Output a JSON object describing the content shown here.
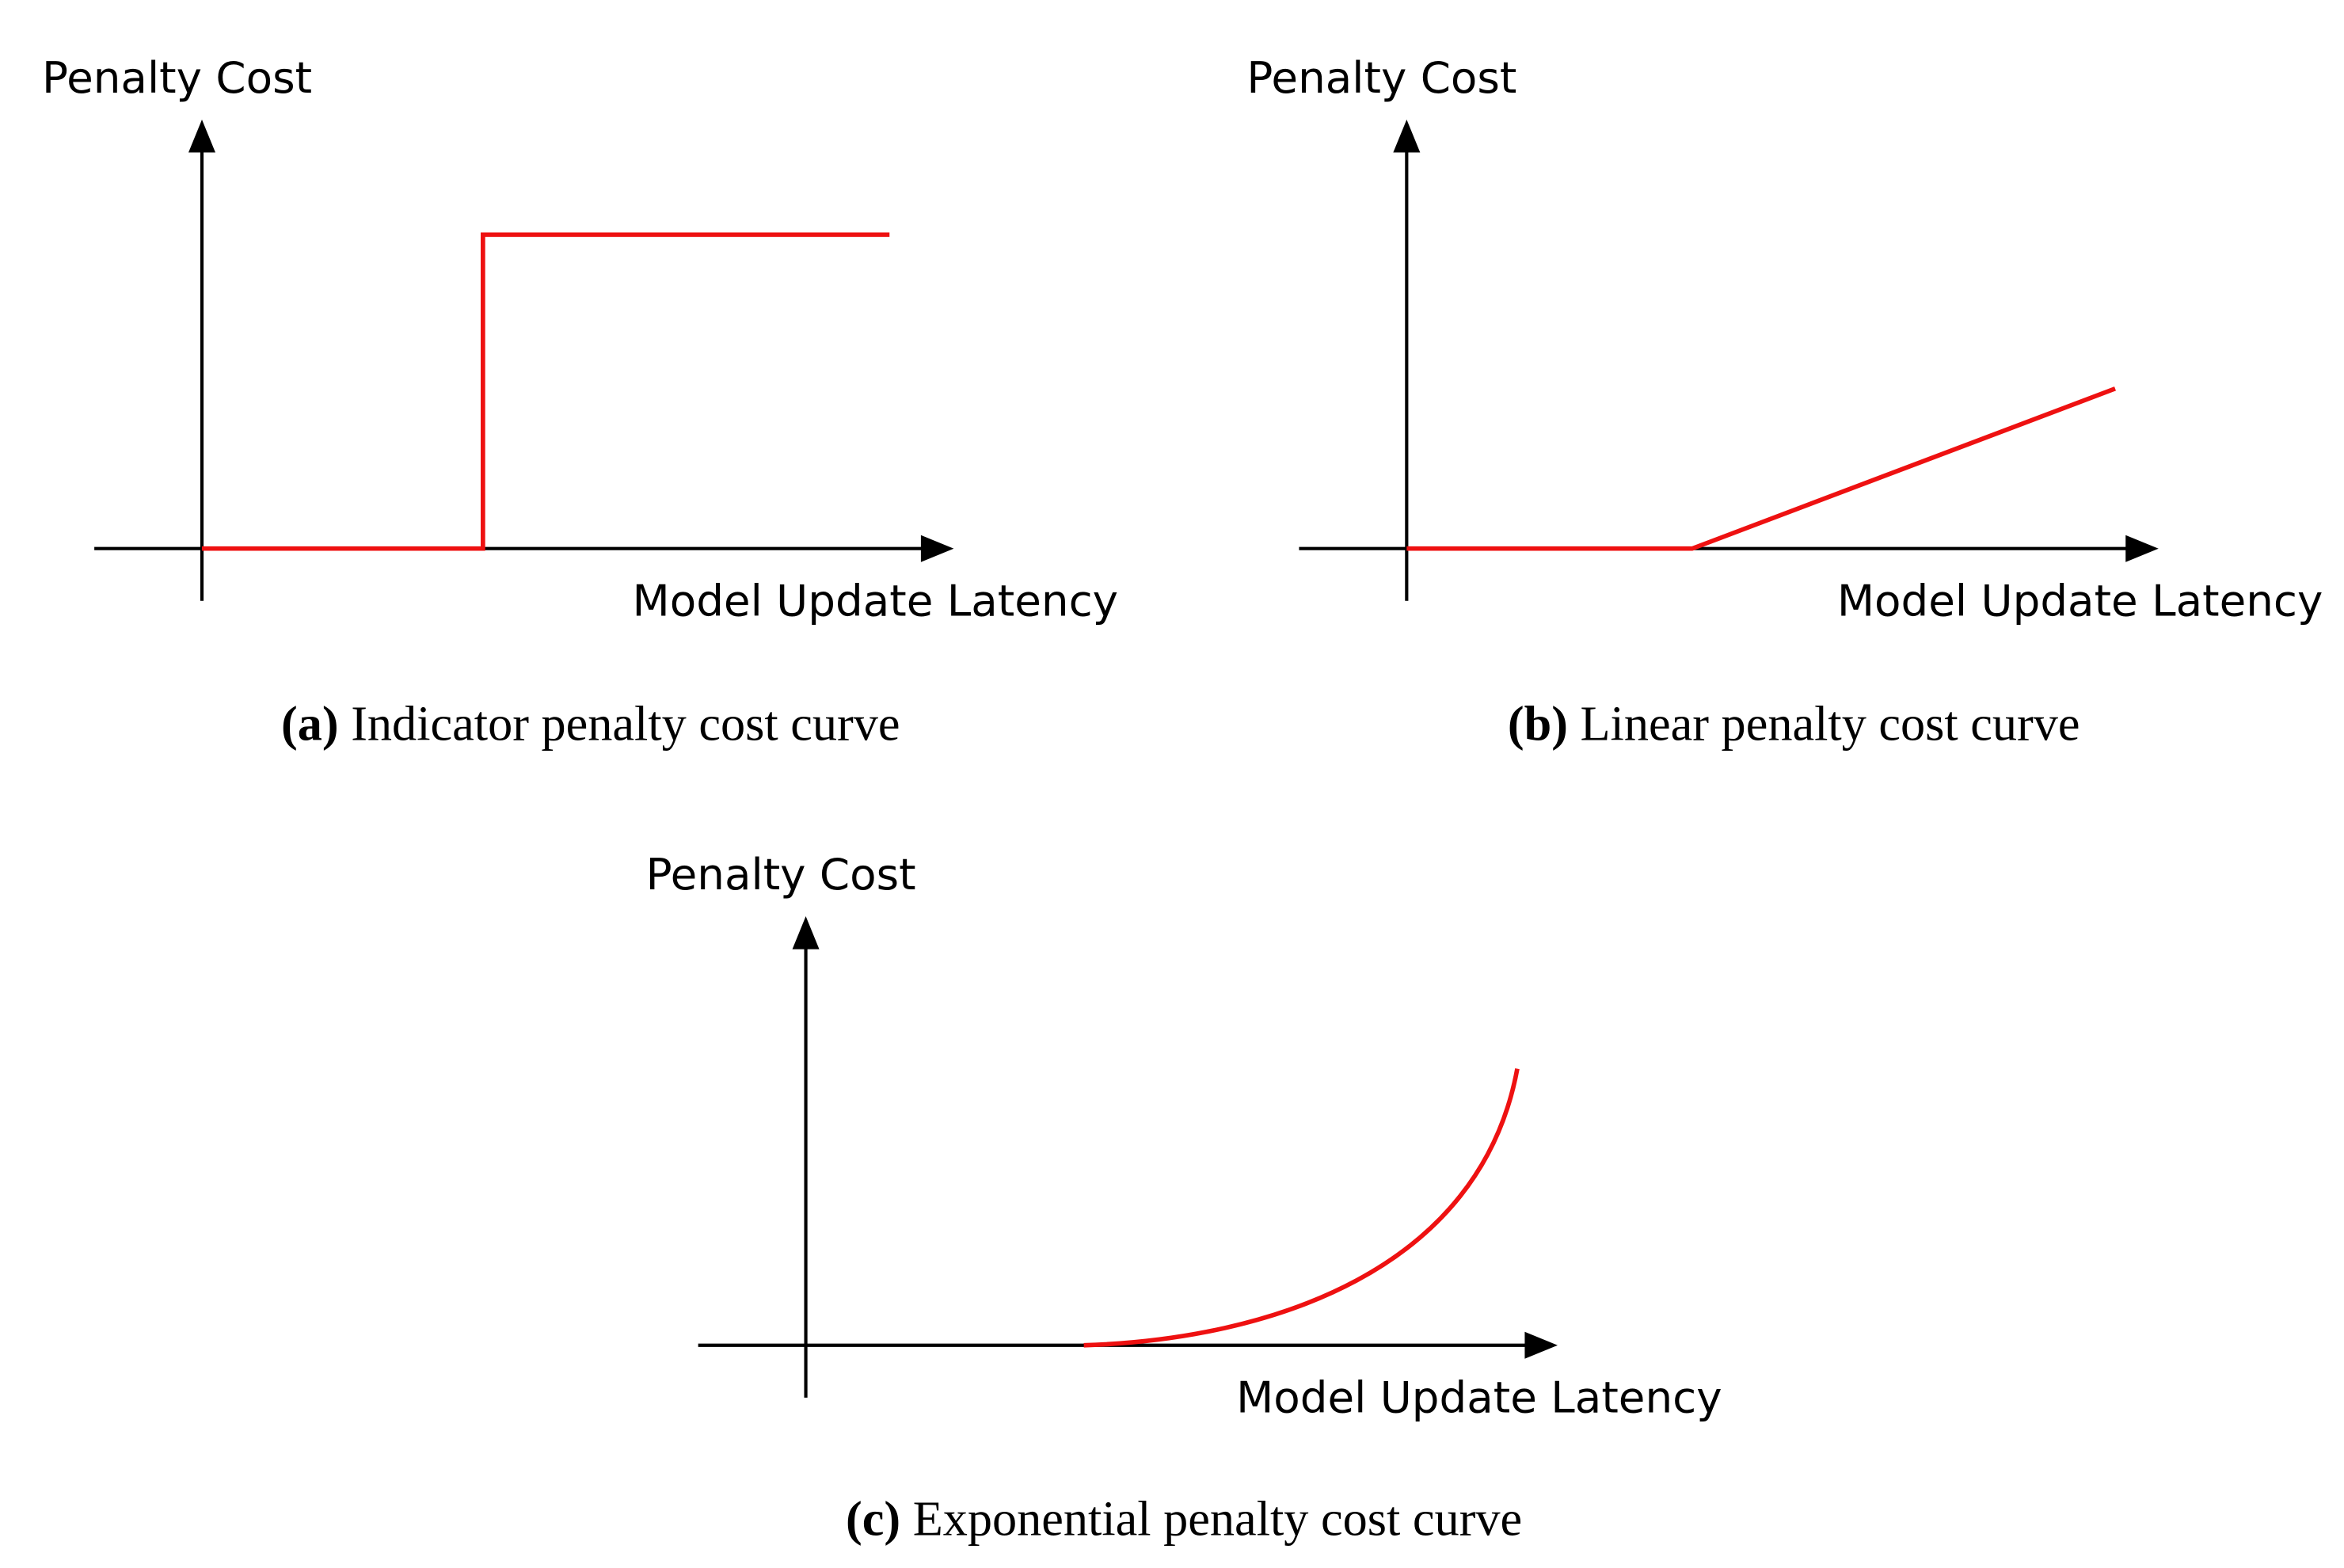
{
  "panels": [
    {
      "y_label": "Penalty Cost",
      "x_label": "Model Update Latency",
      "caption_label": "(a)",
      "caption": "Indicator penalty cost curve"
    },
    {
      "y_label": "Penalty Cost",
      "x_label": "Model Update Latency",
      "caption_label": "(b)",
      "caption": "Linear penalty cost curve"
    },
    {
      "y_label": "Penalty Cost",
      "x_label": "Model Update Latency",
      "caption_label": "(c)",
      "caption": "Exponential penalty cost curve"
    }
  ]
}
